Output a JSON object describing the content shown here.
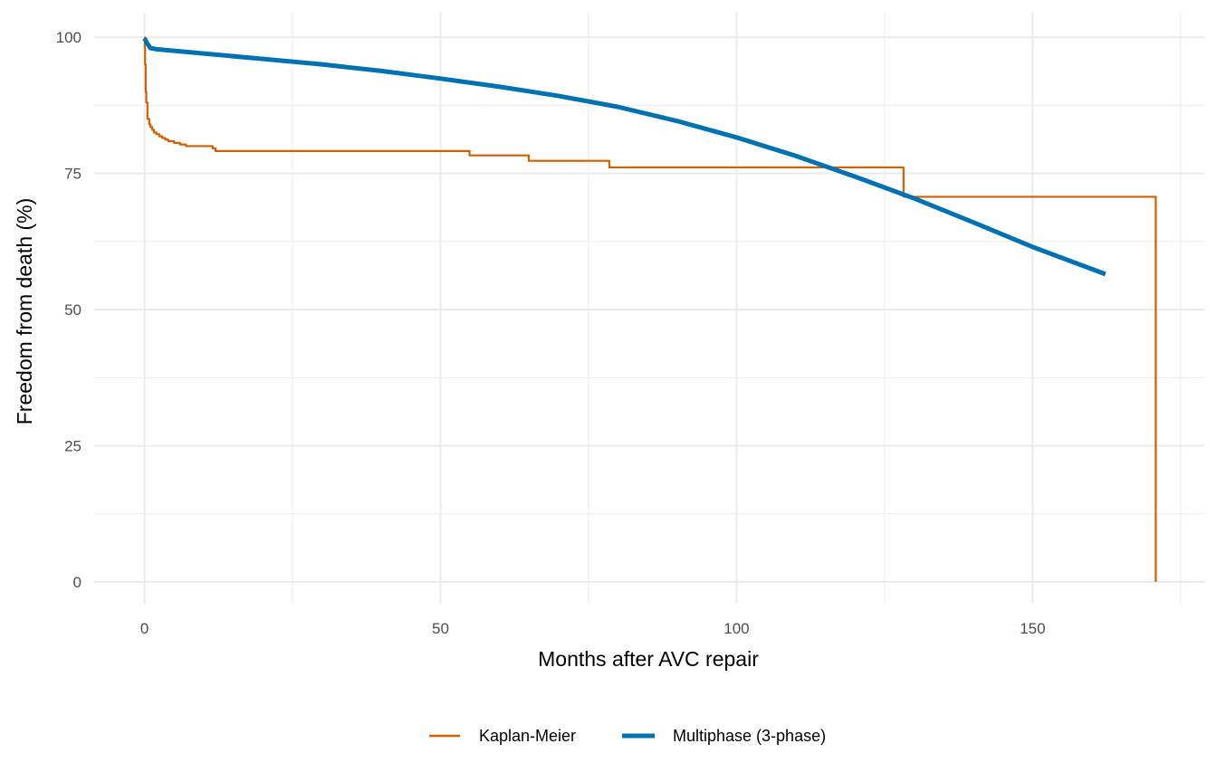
{
  "chart_data": {
    "type": "line",
    "title": "",
    "xlabel": "Months after AVC repair",
    "ylabel": "Freedom from death (%)",
    "xlim": [
      -8.5,
      179
    ],
    "ylim": [
      -4,
      104.5
    ],
    "x_ticks": [
      0,
      50,
      100,
      150
    ],
    "x_tick_labels": [
      "0",
      "50",
      "100",
      "150"
    ],
    "y_ticks": [
      0,
      25,
      50,
      75,
      100
    ],
    "y_tick_labels": [
      "0",
      "25",
      "50",
      "75",
      "100"
    ],
    "grid": true,
    "legend_position": "bottom",
    "series": [
      {
        "name": "Kaplan-Meier",
        "label": "Kaplan-Meier",
        "color": "#D55E00",
        "style": "step",
        "x": [
          0,
          0.05,
          0.1,
          0.2,
          0.3,
          0.5,
          0.8,
          1.0,
          1.3,
          1.6,
          2.0,
          2.5,
          3.0,
          3.5,
          4.0,
          5.0,
          6.0,
          7.0,
          11.5,
          12.0,
          54.9,
          64.9,
          78.5,
          128.2,
          170.8
        ],
        "y": [
          100,
          98.0,
          95.0,
          90.0,
          88.0,
          85.0,
          84.0,
          83.5,
          83.0,
          82.5,
          82.2,
          81.8,
          81.5,
          81.2,
          80.9,
          80.6,
          80.3,
          80.0,
          79.6,
          79.1,
          78.3,
          77.3,
          76.1,
          70.7,
          0
        ]
      },
      {
        "name": "Multiphase (3-phase)",
        "label": "Multiphase (3-phase)",
        "color": "#0072B2",
        "style": "line",
        "x": [
          0,
          0.5,
          1,
          2,
          5,
          10,
          20,
          30,
          40,
          50,
          60,
          70,
          80,
          90,
          100,
          110,
          120,
          130,
          140,
          150,
          162.3
        ],
        "y": [
          99.8,
          98.8,
          98.0,
          97.8,
          97.5,
          97.0,
          96.0,
          95.0,
          93.8,
          92.4,
          90.9,
          89.2,
          87.2,
          84.6,
          81.6,
          78.2,
          74.4,
          70.4,
          66.0,
          61.5,
          56.5
        ]
      }
    ]
  }
}
